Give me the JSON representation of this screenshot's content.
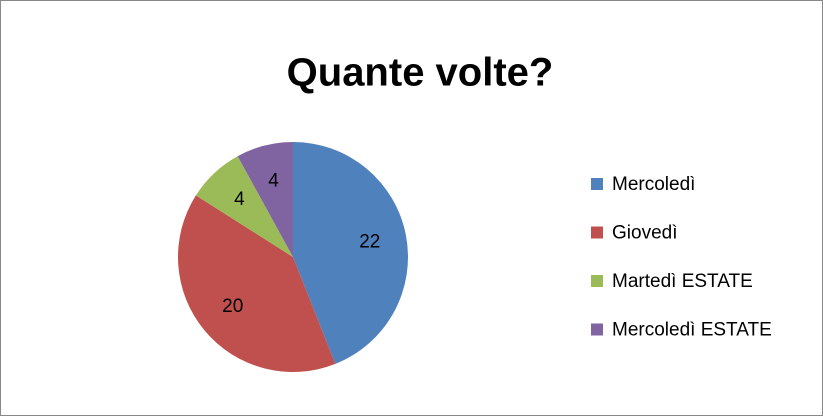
{
  "chart_data": {
    "type": "pie",
    "title": "Quante volte?",
    "categories": [
      "Mercoledì",
      "Giovedì",
      "Martedì ESTATE",
      "Mercoledì ESTATE"
    ],
    "values": [
      22,
      20,
      4,
      4
    ],
    "colors": [
      "#4f81bd",
      "#c0504d",
      "#9bbb59",
      "#8064a2"
    ],
    "legend": "right"
  }
}
